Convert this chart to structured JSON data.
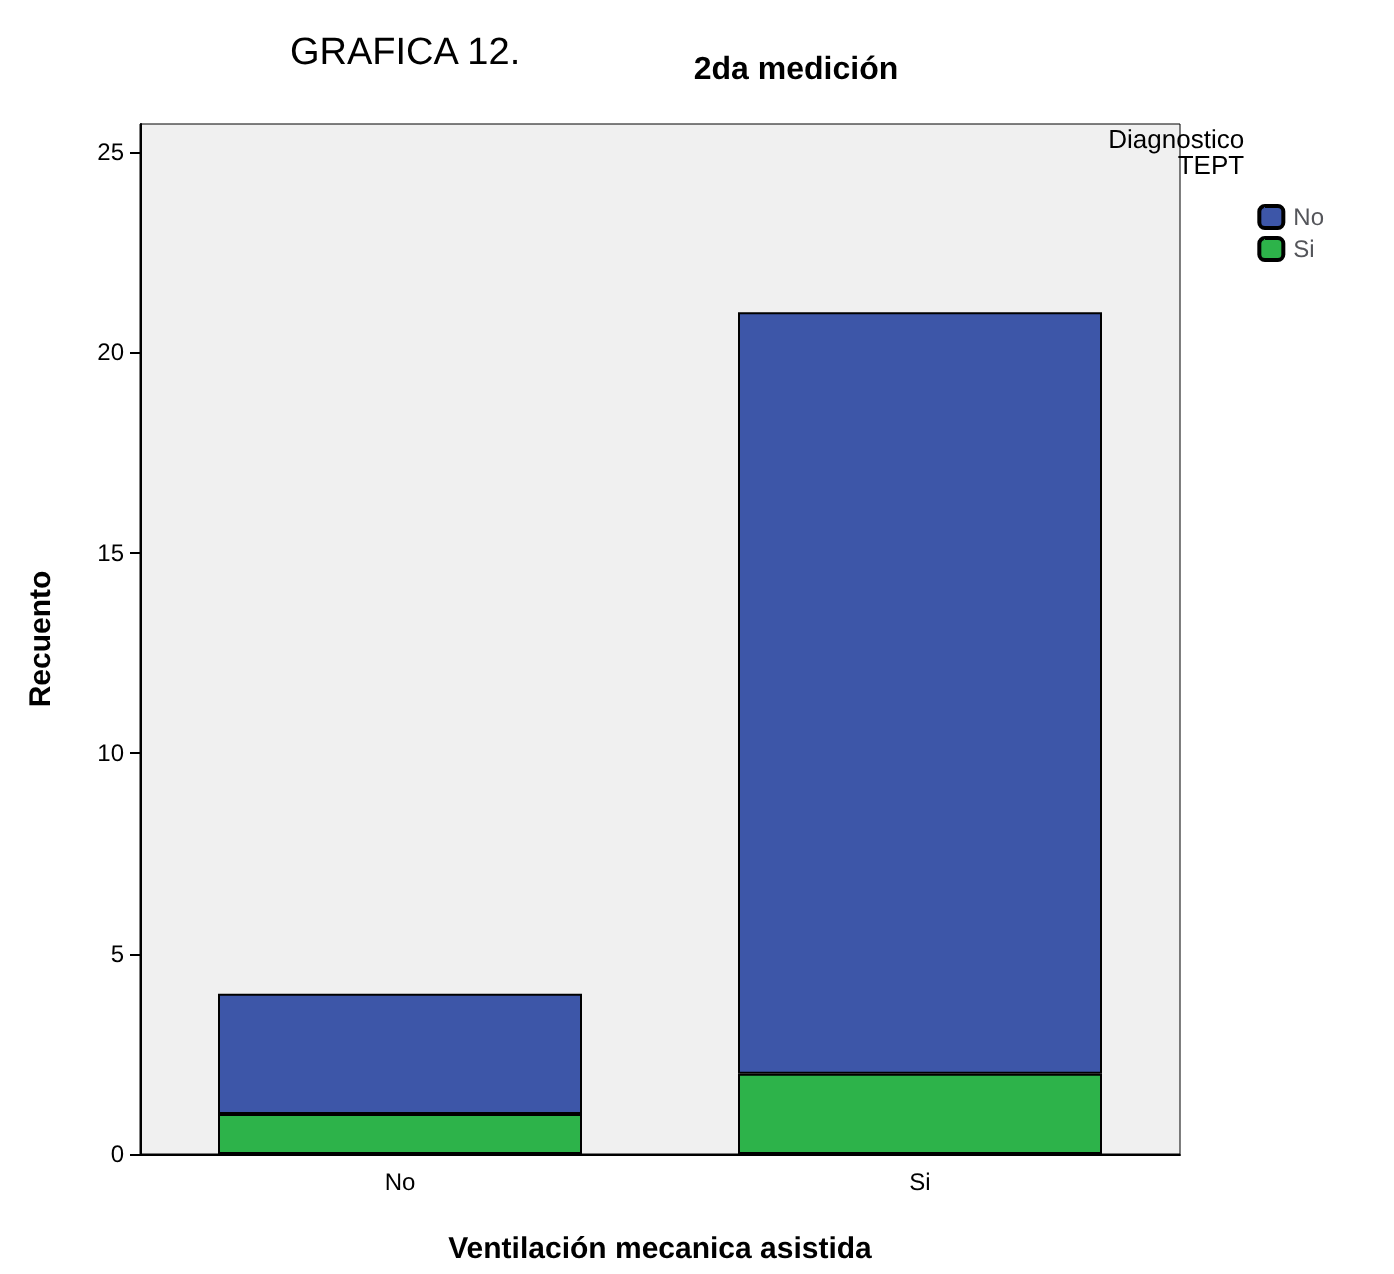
{
  "chart_data": {
    "type": "bar",
    "title": "2da medición",
    "annotations": [
      "GRAFICA 12."
    ],
    "xlabel": "Ventilación mecanica asistida",
    "ylabel": "Recuento",
    "legend_title": "Diagnostico\nTEPT",
    "categories": [
      "No",
      "Si"
    ],
    "stacked": true,
    "series": [
      {
        "name": "Si",
        "color": "#2db34a",
        "values": [
          1,
          2
        ]
      },
      {
        "name": "No",
        "color": "#3d56a8",
        "values": [
          3,
          19
        ]
      }
    ],
    "ylim": [
      0,
      25.7
    ],
    "yticks": [
      0,
      5,
      10,
      15,
      20,
      25
    ],
    "grid": false,
    "legend": "top right"
  }
}
